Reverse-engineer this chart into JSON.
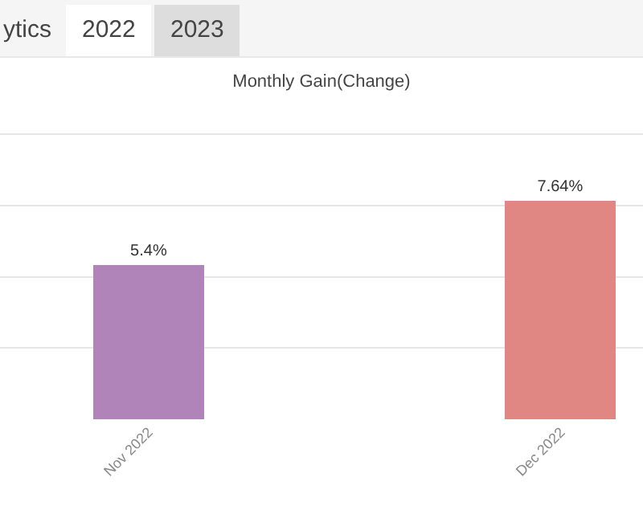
{
  "chart_data": {
    "type": "bar",
    "title": "Monthly Gain(Change)",
    "categories": [
      "Nov 2022",
      "Dec 2022"
    ],
    "values": [
      5.4,
      7.64
    ],
    "colors": [
      "#b084b8",
      "#e08683"
    ],
    "value_labels": [
      "5.4%",
      "7.64%"
    ],
    "yticks": [
      {
        "value": 2.5,
        "label": null
      },
      {
        "value": 5,
        "label": null
      },
      {
        "value": 7.5,
        "label": null
      },
      {
        "value": 10,
        "label": null
      }
    ],
    "tick_labels": "x",
    "grid": "y",
    "annotations": [
      "ytics",
      "2022",
      "2023"
    ]
  }
}
